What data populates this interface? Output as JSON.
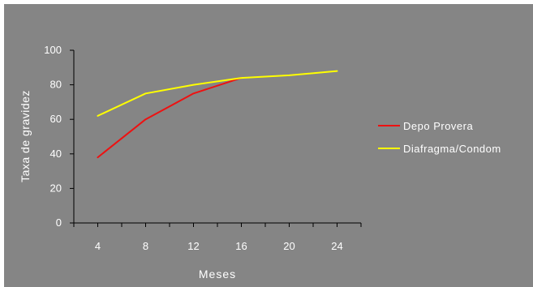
{
  "chart_data": {
    "type": "line",
    "title": "",
    "xlabel": "Meses",
    "ylabel": "Taxa de gravidez",
    "x": [
      4,
      8,
      12,
      16,
      20,
      24
    ],
    "xticks": [
      "4",
      "8",
      "12",
      "16",
      "20",
      "24"
    ],
    "yticks": [
      "0",
      "20",
      "40",
      "60",
      "80",
      "100"
    ],
    "xlim": [
      2,
      26
    ],
    "ylim": [
      0,
      100
    ],
    "grid": false,
    "legend_position": "right",
    "series": [
      {
        "name": "Depo Provera",
        "color": "#ee1111",
        "points": [
          [
            4,
            38
          ],
          [
            8,
            60
          ],
          [
            12,
            75
          ],
          [
            16,
            84
          ]
        ]
      },
      {
        "name": "Diafragma/Condom",
        "color": "#ffff00",
        "points": [
          [
            4,
            62
          ],
          [
            8,
            75
          ],
          [
            12,
            80
          ],
          [
            16,
            84
          ],
          [
            20,
            85.5
          ],
          [
            24,
            88
          ]
        ]
      }
    ]
  },
  "colors": {
    "background": "#858585",
    "axis": "#000000",
    "text": "#ffffff"
  }
}
